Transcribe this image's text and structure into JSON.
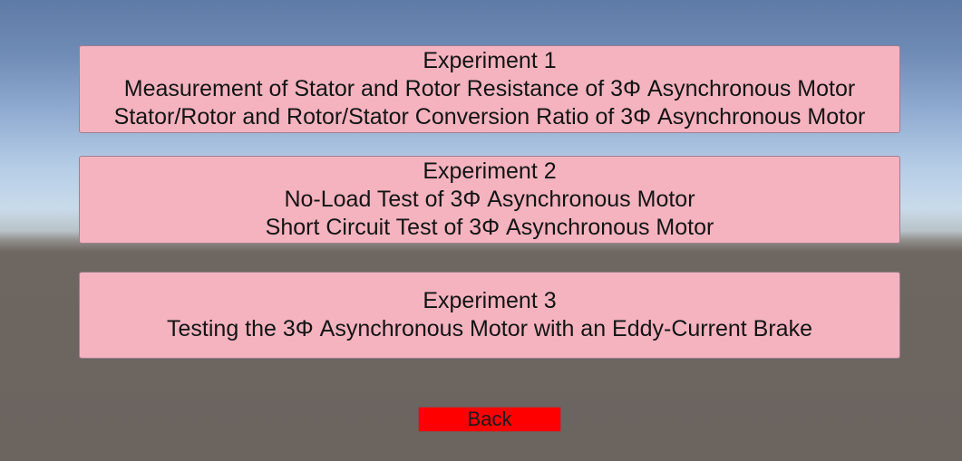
{
  "experiments": [
    {
      "title": "Experiment 1",
      "lines": [
        "Measurement of Stator and Rotor Resistance of 3Φ Asynchronous Motor",
        "Stator/Rotor and Rotor/Stator Conversion Ratio of 3Φ Asynchronous Motor"
      ]
    },
    {
      "title": "Experiment 2",
      "lines": [
        "No-Load Test of 3Φ Asynchronous Motor",
        "Short Circuit Test of 3Φ Asynchronous Motor"
      ]
    },
    {
      "title": "Experiment 3",
      "lines": [
        "Testing the 3Φ Asynchronous Motor with an Eddy-Current Brake"
      ]
    }
  ],
  "back_label": "Back",
  "colors": {
    "button_bg": "#f4b3bf",
    "back_bg": "#ff0000"
  }
}
